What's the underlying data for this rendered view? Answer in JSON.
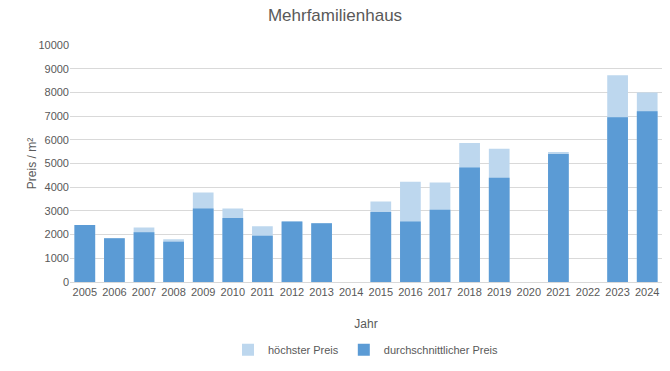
{
  "chart_data": {
    "type": "bar",
    "title": "Mehrfamilienhaus",
    "x_label": "Jahr",
    "y_label": "Preis / m²",
    "categories": [
      "2005",
      "2006",
      "2007",
      "2008",
      "2009",
      "2010",
      "2011",
      "2012",
      "2013",
      "2014",
      "2015",
      "2016",
      "2017",
      "2018",
      "2019",
      "2020",
      "2021",
      "2022",
      "2023",
      "2024"
    ],
    "series": [
      {
        "name": "höchster Preis",
        "color": "#bdd7ee",
        "values": [
          2400,
          1850,
          2300,
          1800,
          3780,
          3100,
          2350,
          2550,
          2480,
          null,
          3400,
          4230,
          4200,
          5870,
          5620,
          null,
          5480,
          null,
          8720,
          8000
        ]
      },
      {
        "name": "durchschnittlicher Preis",
        "color": "#5b9bd5",
        "values": [
          2400,
          1850,
          2100,
          1700,
          3100,
          2700,
          1950,
          2550,
          2480,
          null,
          2950,
          2550,
          3050,
          4830,
          4400,
          null,
          5400,
          null,
          6950,
          7200
        ]
      }
    ],
    "ylim": [
      0,
      10000
    ],
    "yticks": [
      0,
      1000,
      2000,
      3000,
      4000,
      5000,
      6000,
      7000,
      8000,
      9000,
      10000
    ],
    "grid": true,
    "legend": "bottom"
  }
}
